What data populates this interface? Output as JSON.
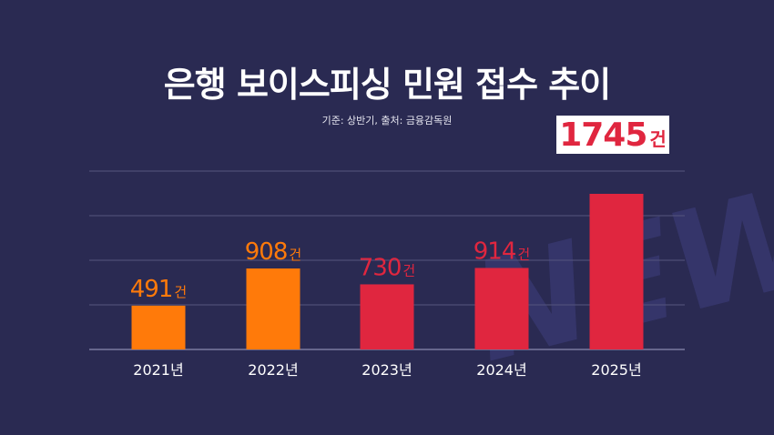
{
  "header": {
    "title": "은행 보이스피싱 민원 접수 추이",
    "subtitle": "기준: 상반기, 출처: 금융감독원"
  },
  "watermark": "NEWS",
  "colors": {
    "background": "#2a2a52",
    "orange": "#ff7a0a",
    "red": "#e0263f",
    "grid": "#55557e",
    "highlight_box": "#ffffff"
  },
  "chart_data": {
    "type": "bar",
    "title": "은행 보이스피싱 민원 접수 추이",
    "subtitle": "기준: 상반기, 출처: 금융감독원",
    "categories": [
      "2021년",
      "2022년",
      "2023년",
      "2024년",
      "2025년"
    ],
    "values": [
      491,
      908,
      730,
      914,
      1745
    ],
    "value_labels": [
      "491",
      "908",
      "730",
      "914",
      "1745"
    ],
    "unit": "건",
    "bar_colors": [
      "#ff7a0a",
      "#ff7a0a",
      "#e0263f",
      "#e0263f",
      "#e0263f"
    ],
    "highlighted_category": "2025년",
    "xlabel": "",
    "ylabel": "",
    "ylim": [
      0,
      2000
    ],
    "grid": true,
    "legend": "none"
  }
}
